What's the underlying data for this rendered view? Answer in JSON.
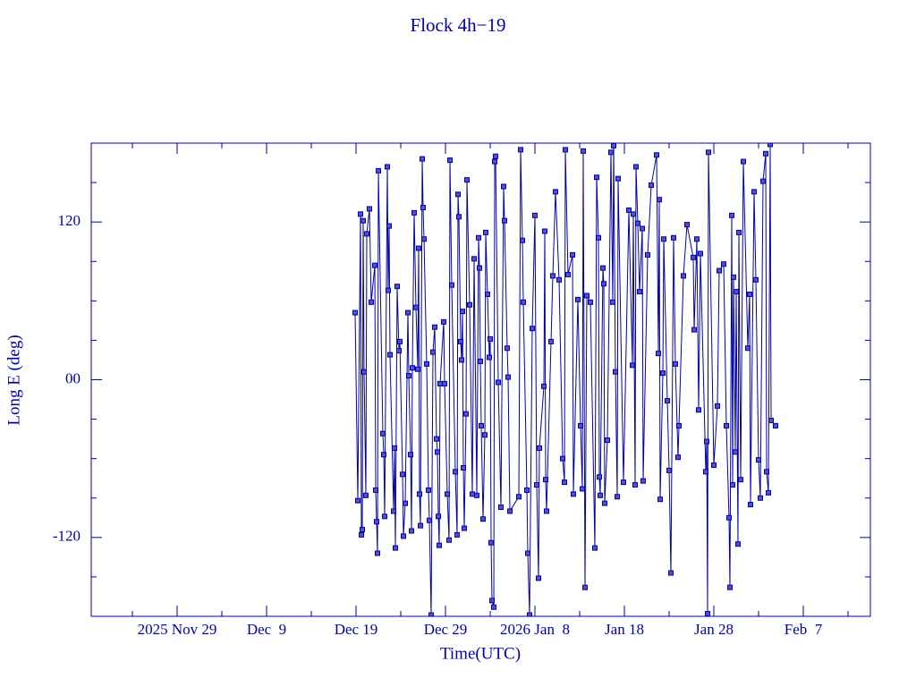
{
  "chart_data": {
    "type": "scatter",
    "title": "Flock 4h−19",
    "x_label": "Time(UTC)",
    "y_label": "Long E (deg)",
    "color": "#0000a8",
    "xlim": [
      "2025-11-19T09:36",
      "2026-02-14T12:00"
    ],
    "ylim": [
      -180,
      180
    ],
    "xticks": [
      {
        "value": "2025-11-29",
        "label": "2025 Nov 29"
      },
      {
        "value": "2025-12-09",
        "label": "Dec  9"
      },
      {
        "value": "2025-12-19",
        "label": "Dec 19"
      },
      {
        "value": "2025-12-29",
        "label": "Dec 29"
      },
      {
        "value": "2026-01-08",
        "label": "2026 Jan  8"
      },
      {
        "value": "2026-01-18",
        "label": "Jan 18"
      },
      {
        "value": "2026-01-28",
        "label": "Jan 28"
      },
      {
        "value": "2026-02-07",
        "label": "Feb  7"
      }
    ],
    "yticks": [
      -120,
      {
        "value": 0,
        "label": "00"
      },
      120
    ],
    "x": [
      "2025-12-18T21:36",
      "2025-12-19T04:48",
      "2025-12-19T12:00",
      "2025-12-19T14:24",
      "2025-12-19T16:48",
      "2025-12-19T19:12",
      "2025-12-19T21:36",
      "2025-12-20T02:24",
      "2025-12-20T04:48",
      "2025-12-20T12:00",
      "2025-12-20T16:48",
      "2025-12-21T02:24",
      "2025-12-21T04:48",
      "2025-12-21T07:12",
      "2025-12-21T09:36",
      "2025-12-21T12:00",
      "2025-12-22T00:00",
      "2025-12-22T02:24",
      "2025-12-22T04:48",
      "2025-12-22T12:00",
      "2025-12-22T14:24",
      "2025-12-22T16:48",
      "2025-12-22T19:12",
      "2025-12-23T04:48",
      "2025-12-23T07:12",
      "2025-12-23T09:36",
      "2025-12-23T14:24",
      "2025-12-23T19:12",
      "2025-12-23T21:36",
      "2025-12-24T04:48",
      "2025-12-24T07:12",
      "2025-12-24T12:00",
      "2025-12-24T19:12",
      "2025-12-24T21:36",
      "2025-12-25T02:24",
      "2025-12-25T04:48",
      "2025-12-25T07:12",
      "2025-12-25T12:00",
      "2025-12-25T16:48",
      "2025-12-25T21:36",
      "2025-12-26T00:00",
      "2025-12-26T02:24",
      "2025-12-26T04:48",
      "2025-12-26T09:36",
      "2025-12-26T12:00",
      "2025-12-26T14:24",
      "2025-12-26T21:36",
      "2025-12-27T02:24",
      "2025-12-27T04:48",
      "2025-12-27T09:36",
      "2025-12-27T14:24",
      "2025-12-27T19:12",
      "2025-12-28T00:00",
      "2025-12-28T02:24",
      "2025-12-28T04:48",
      "2025-12-28T07:12",
      "2025-12-28T09:36",
      "2025-12-28T19:12",
      "2025-12-28T21:36",
      "2025-12-29T04:48",
      "2025-12-29T09:36",
      "2025-12-29T12:00",
      "2025-12-29T16:48",
      "2025-12-30T02:24",
      "2025-12-30T07:12",
      "2025-12-30T09:36",
      "2025-12-30T12:00",
      "2025-12-30T16:48",
      "2025-12-30T19:12",
      "2025-12-30T21:36",
      "2025-12-31T00:00",
      "2025-12-31T02:24",
      "2025-12-31T07:12",
      "2025-12-31T09:36",
      "2025-12-31T16:48",
      "2026-01-01T00:00",
      "2026-01-01T04:48",
      "2026-01-01T12:00",
      "2026-01-01T16:48",
      "2026-01-01T19:12",
      "2026-01-01T21:36",
      "2026-01-02T00:00",
      "2026-01-02T04:48",
      "2026-01-02T09:36",
      "2026-01-02T12:00",
      "2026-01-02T16:48",
      "2026-01-02T21:36",
      "2026-01-03T00:00",
      "2026-01-03T02:24",
      "2026-01-03T04:48",
      "2026-01-03T09:36",
      "2026-01-03T12:00",
      "2026-01-03T14:24",
      "2026-01-03T21:36",
      "2026-01-04T04:48",
      "2026-01-04T12:00",
      "2026-01-04T14:24",
      "2026-01-04T21:36",
      "2026-01-05T00:00",
      "2026-01-05T04:48",
      "2026-01-06T04:48",
      "2026-01-06T09:36",
      "2026-01-06T14:24",
      "2026-01-06T16:48",
      "2026-01-07T02:24",
      "2026-01-07T04:48",
      "2026-01-07T09:36",
      "2026-01-07T16:48",
      "2026-01-08T00:00",
      "2026-01-08T04:48",
      "2026-01-08T09:36",
      "2026-01-08T12:00",
      "2026-01-09T00:00",
      "2026-01-09T02:24",
      "2026-01-09T04:48",
      "2026-01-09T07:12",
      "2026-01-09T19:12",
      "2026-01-10T00:00",
      "2026-01-10T07:12",
      "2026-01-10T16:48",
      "2026-01-11T02:24",
      "2026-01-11T07:12",
      "2026-01-11T09:36",
      "2026-01-11T16:48",
      "2026-01-12T04:48",
      "2026-01-12T07:12",
      "2026-01-12T19:12",
      "2026-01-13T02:24",
      "2026-01-13T07:12",
      "2026-01-13T09:36",
      "2026-01-13T14:24",
      "2026-01-13T19:12",
      "2026-01-14T04:48",
      "2026-01-14T16:48",
      "2026-01-14T21:36",
      "2026-01-15T02:24",
      "2026-01-15T04:48",
      "2026-01-15T07:12",
      "2026-01-15T14:24",
      "2026-01-15T16:48",
      "2026-01-15T19:12",
      "2026-01-16T02:24",
      "2026-01-16T12:00",
      "2026-01-16T16:48",
      "2026-01-16T19:12",
      "2026-01-17T00:00",
      "2026-01-17T04:48",
      "2026-01-17T07:12",
      "2026-01-17T21:36",
      "2026-01-18T12:00",
      "2026-01-18T21:36",
      "2026-01-19T00:00",
      "2026-01-19T04:48",
      "2026-01-19T07:12",
      "2026-01-19T12:00",
      "2026-01-19T16:48",
      "2026-01-20T00:00",
      "2026-01-20T02:24",
      "2026-01-20T14:24",
      "2026-01-21T00:00",
      "2026-01-21T14:24",
      "2026-01-21T19:12",
      "2026-01-21T21:36",
      "2026-01-22T00:00",
      "2026-01-22T07:12",
      "2026-01-22T09:36",
      "2026-01-22T19:12",
      "2026-01-23T00:00",
      "2026-01-23T04:48",
      "2026-01-23T12:00",
      "2026-01-23T16:48",
      "2026-01-24T00:00",
      "2026-01-24T02:24",
      "2026-01-24T14:24",
      "2026-01-25T00:00",
      "2026-01-25T16:48",
      "2026-01-25T19:12",
      "2026-01-26T02:24",
      "2026-01-26T07:12",
      "2026-01-26T12:00",
      "2026-01-27T02:24",
      "2026-01-27T04:48",
      "2026-01-27T07:12",
      "2026-01-27T09:36",
      "2026-01-28T00:00",
      "2026-01-28T09:36",
      "2026-01-28T14:24",
      "2026-01-29T02:24",
      "2026-01-29T09:36",
      "2026-01-29T16:48",
      "2026-01-29T19:12",
      "2026-01-30T00:00",
      "2026-01-30T02:24",
      "2026-01-30T04:48",
      "2026-01-30T09:36",
      "2026-01-30T12:00",
      "2026-01-30T16:48",
      "2026-01-30T19:12",
      "2026-01-31T00:00",
      "2026-01-31T07:12",
      "2026-01-31T19:12",
      "2026-02-01T00:00",
      "2026-02-01T02:24",
      "2026-02-01T12:00",
      "2026-02-01T16:48",
      "2026-02-02T00:00",
      "2026-02-02T04:48",
      "2026-02-02T12:00",
      "2026-02-02T19:12",
      "2026-02-02T21:36",
      "2026-02-03T02:24",
      "2026-02-03T07:12",
      "2026-02-03T09:36",
      "2026-02-03T21:36"
    ],
    "values": [
      51,
      -92,
      126,
      -118,
      -114,
      121,
      6,
      -88,
      111,
      130,
      59,
      87,
      -84,
      -108,
      -132,
      159,
      -41,
      -57,
      -104,
      162,
      68,
      117,
      19,
      -100,
      -52,
      -128,
      71,
      22,
      29,
      -72,
      -119,
      -94,
      51,
      3,
      -57,
      -115,
      9,
      127,
      55,
      8,
      100,
      -87,
      -111,
      168,
      131,
      107,
      12,
      -84,
      -107,
      -179,
      21,
      40,
      -45,
      -55,
      -104,
      -126,
      -3,
      44,
      -3,
      -87,
      -122,
      167,
      72,
      -70,
      -118,
      141,
      124,
      29,
      15,
      52,
      -67,
      -113,
      -26,
      152,
      57,
      -87,
      92,
      -88,
      108,
      85,
      14,
      -35,
      -106,
      -42,
      112,
      65,
      17,
      31,
      -124,
      -168,
      -173,
      166,
      170,
      -2,
      -97,
      147,
      121,
      24,
      2,
      -100,
      -89,
      175,
      106,
      59,
      -84,
      -132,
      -179,
      39,
      125,
      -80,
      -151,
      -52,
      -5,
      113,
      -76,
      -100,
      29,
      79,
      143,
      76,
      -60,
      -78,
      175,
      80,
      95,
      -87,
      61,
      -35,
      -83,
      174,
      -158,
      64,
      59,
      -128,
      154,
      108,
      -74,
      -88,
      85,
      73,
      -94,
      -46,
      173,
      59,
      178,
      6,
      -89,
      153,
      -78,
      129,
      11,
      126,
      -80,
      162,
      119,
      67,
      115,
      -77,
      95,
      148,
      171,
      20,
      137,
      -91,
      5,
      107,
      -16,
      -69,
      -147,
      108,
      12,
      -59,
      -35,
      79,
      118,
      93,
      38,
      107,
      -23,
      96,
      -70,
      -47,
      -178,
      173,
      -65,
      -20,
      83,
      88,
      -35,
      -105,
      -158,
      125,
      -80,
      78,
      -55,
      67,
      -125,
      112,
      -76,
      166,
      24,
      65,
      -95,
      143,
      76,
      -61,
      -90,
      151,
      172,
      -70,
      -86,
      179,
      -31,
      -35
    ]
  }
}
